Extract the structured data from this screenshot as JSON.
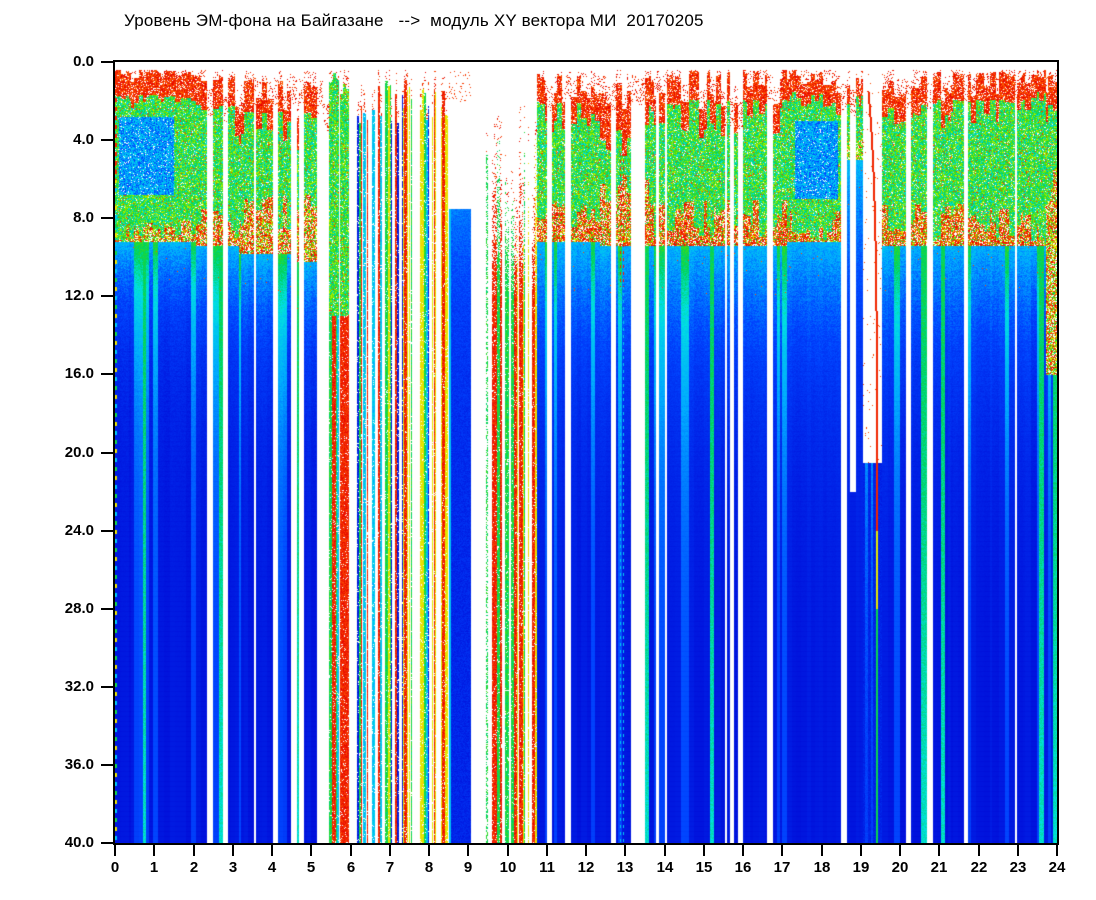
{
  "chart_data": {
    "type": "heatmap",
    "subtype": "spectrogram",
    "title": "Уровень ЭМ-фона на Байгазане   -->  модуль XY вектора МИ  20170205",
    "date_label": "20170205",
    "x_axis": {
      "min": 0,
      "max": 24,
      "unit": "hour",
      "tick_labels": [
        "0",
        "1",
        "2",
        "3",
        "4",
        "5",
        "6",
        "7",
        "8",
        "9",
        "10",
        "11",
        "12",
        "13",
        "14",
        "15",
        "16",
        "17",
        "18",
        "19",
        "20",
        "21",
        "22",
        "23",
        "24"
      ]
    },
    "y_axis": {
      "min": 0,
      "max": 40,
      "direction": "down",
      "tick_labels": [
        "0.0",
        "4.0",
        "8.0",
        "12.0",
        "16.0",
        "20.0",
        "24.0",
        "28.0",
        "32.0",
        "36.0",
        "40.0"
      ]
    },
    "plot_background": "#ffffff",
    "frame_color": "#000000",
    "colors": {
      "deep_blue": "#0017d8",
      "cyan": "#00c0f0",
      "green": "#16d234",
      "yellow": "#e9e800",
      "red": "#e80f00",
      "white_gap": "#ffffff"
    },
    "colormap": {
      "name": "jet",
      "stops": [
        [
          0.0,
          [
            0,
            0,
            150
          ]
        ],
        [
          0.1,
          [
            0,
            10,
            215
          ]
        ],
        [
          0.22,
          [
            0,
            70,
            255
          ]
        ],
        [
          0.32,
          [
            0,
            170,
            255
          ]
        ],
        [
          0.42,
          [
            0,
            225,
            225
          ]
        ],
        [
          0.52,
          [
            0,
            210,
            90
          ]
        ],
        [
          0.62,
          [
            90,
            225,
            0
          ]
        ],
        [
          0.72,
          [
            220,
            245,
            0
          ]
        ],
        [
          0.8,
          [
            255,
            200,
            0
          ]
        ],
        [
          0.88,
          [
            255,
            90,
            0
          ]
        ],
        [
          1.0,
          [
            230,
            0,
            0
          ]
        ]
      ]
    },
    "seed": 20170205,
    "segments": [
      {
        "h0": 0.0,
        "h1": 1.95,
        "type": "dense",
        "top": [
          0.35,
          1.1
        ],
        "redCap": 1.3,
        "greenEnd": [
          8.0,
          9.2
        ],
        "redBand": [
          8.0,
          9.2
        ],
        "band": 0.35,
        "blueStart": 9.2,
        "decay": 3,
        "gap": 0.02,
        "cyan": 0.5,
        "bluePatch": {
          "h0": 0.1,
          "h1": 1.5,
          "d0": 2.8,
          "d1": 6.8
        }
      },
      {
        "h0": 1.95,
        "h1": 3.1,
        "type": "cols",
        "top": [
          0.7,
          2.4
        ],
        "redCap": 1.5,
        "greenEnd": [
          7.2,
          9.0
        ],
        "redBand": [
          7.2,
          9.4
        ],
        "band": 0.5,
        "blueStart": 9.4,
        "decay": 4,
        "gap": 0.2,
        "cyan": 0.35
      },
      {
        "h0": 3.1,
        "h1": 4.55,
        "type": "cols",
        "top": [
          0.9,
          3.0
        ],
        "redCap": 1.6,
        "greenEnd": [
          6.6,
          8.6
        ],
        "redBand": [
          7.6,
          9.8
        ],
        "band": 0.45,
        "blueStart": 9.8,
        "decay": 4,
        "gap": 0.32,
        "cyan": 0.3
      },
      {
        "h0": 4.55,
        "h1": 5.35,
        "type": "cols",
        "top": [
          1.0,
          3.4
        ],
        "redCap": 1.6,
        "greenEnd": [
          6.2,
          8.0
        ],
        "redBand": [
          7.8,
          10.2
        ],
        "band": 0.4,
        "blueStart": 10.2,
        "decay": 4,
        "gap": 0.44,
        "cyan": 0.3
      },
      {
        "h0": 5.35,
        "h1": 5.95,
        "type": "stripes",
        "tip": [
          0.5,
          1.8
        ],
        "density": 0.85,
        "palette": [
          "green",
          "yellow",
          "red",
          "green",
          "cyan"
        ],
        "capGreen": 13
      },
      {
        "h0": 5.95,
        "h1": 8.5,
        "type": "stripes",
        "tip": [
          0.8,
          3.2
        ],
        "density": 0.62,
        "palette": [
          "red",
          "green",
          "yellow",
          "cyan",
          "blue",
          "red",
          "green"
        ],
        "capGreen": 0
      },
      {
        "h0": 8.5,
        "h1": 9.0,
        "type": "bluecol",
        "topD": 7.5
      },
      {
        "h0": 9.0,
        "h1": 9.6,
        "type": "stripes",
        "tip": [
          1.5,
          7.0
        ],
        "density": 0.32,
        "palette": [
          "red",
          "red",
          "red",
          "green"
        ],
        "capGreen": 0,
        "dotted": true
      },
      {
        "h0": 9.6,
        "h1": 10.75,
        "type": "stripes",
        "tip": [
          3.0,
          8.5
        ],
        "density": 0.8,
        "palette": [
          "red",
          "yellow",
          "green",
          "red"
        ],
        "capGreen": 0,
        "denseBelow": 12
      },
      {
        "h0": 10.75,
        "h1": 12.3,
        "type": "cols",
        "top": [
          0.6,
          2.2
        ],
        "redCap": 1.4,
        "greenEnd": [
          6.8,
          8.6
        ],
        "redBand": [
          7.0,
          9.2
        ],
        "band": 0.5,
        "blueStart": 9.2,
        "decay": 5.5,
        "gap": 0.12,
        "cyan": 0.5
      },
      {
        "h0": 12.3,
        "h1": 13.55,
        "type": "cols",
        "top": [
          0.8,
          3.2
        ],
        "redCap": 2.4,
        "greenEnd": [
          5.5,
          7.5
        ],
        "redBand": [
          7.0,
          9.4
        ],
        "band": 0.45,
        "blueStart": 9.4,
        "decay": 5.5,
        "gap": 0.3,
        "cyan": 0.45
      },
      {
        "h0": 13.55,
        "h1": 17.1,
        "type": "cols",
        "top": [
          0.4,
          2.6
        ],
        "redCap": 1.5,
        "greenEnd": [
          7.0,
          9.0
        ],
        "redBand": [
          7.0,
          9.4
        ],
        "band": 0.55,
        "blueStart": 9.4,
        "decay": 5.5,
        "gap": 0.1,
        "cyan": 0.5
      },
      {
        "h0": 17.1,
        "h1": 18.55,
        "type": "cols",
        "top": [
          0.4,
          1.6
        ],
        "redCap": 1.1,
        "greenEnd": [
          7.6,
          9.2
        ],
        "redBand": [
          7.4,
          9.2
        ],
        "band": 0.5,
        "blueStart": 9.2,
        "decay": 5.5,
        "gap": 0.08,
        "cyan": 0.55,
        "bluePatch": {
          "h0": 17.3,
          "h1": 18.4,
          "d0": 3.0,
          "d1": 7.0
        }
      },
      {
        "h0": 18.55,
        "h1": 19.02,
        "type": "cols",
        "top": [
          0.8,
          2.2
        ],
        "redCap": 0.9,
        "greenEnd": [
          3.6,
          4.8
        ],
        "redBand": [
          4.2,
          5.0
        ],
        "band": 0.12,
        "blueStart": 5.0,
        "decay": 8,
        "gap": 0.45,
        "gapTo": 22,
        "cyan": 0.7
      },
      {
        "h0": 19.02,
        "h1": 19.42,
        "type": "notch",
        "whiteTo": 20.5
      },
      {
        "h0": 19.42,
        "h1": 23.25,
        "type": "cols",
        "top": [
          0.5,
          2.0
        ],
        "redCap": 1.4,
        "greenEnd": [
          7.2,
          9.2
        ],
        "redBand": [
          7.4,
          9.4
        ],
        "band": 0.5,
        "blueStart": 9.4,
        "decay": 5.5,
        "gap": 0.1,
        "cyan": 0.5
      },
      {
        "h0": 23.25,
        "h1": 23.7,
        "type": "dense",
        "top": [
          0.3,
          0.9
        ],
        "redCap": 1.2,
        "greenEnd": [
          8.2,
          9.4
        ],
        "redBand": [
          8.0,
          9.4
        ],
        "band": 0.4,
        "blueStart": 9.4,
        "decay": 4,
        "gap": 0.03,
        "cyan": 0.5
      },
      {
        "h0": 23.7,
        "h1": 24.01,
        "type": "cols",
        "top": [
          0.6,
          2.2
        ],
        "redCap": 1.5,
        "greenEnd": [
          5.5,
          7.5
        ],
        "redBand": [
          7.0,
          16.0
        ],
        "band": 0.32,
        "blueStart": 9.0,
        "decay": 6,
        "gap": 0.25,
        "cyan": 0.5
      }
    ],
    "features": [
      {
        "type": "dashed-edge",
        "hour": 0.02,
        "colors": [
          "red",
          "green",
          "yellow",
          "cyan"
        ]
      },
      {
        "type": "dashed-line",
        "hour": 12.87,
        "d0": 4.5,
        "redTo": 11.5
      },
      {
        "type": "notch-curve",
        "hour": 19.4,
        "d0": 1.5,
        "bend": 9,
        "orangeFrom": 24,
        "greenFrom": 28
      }
    ]
  }
}
